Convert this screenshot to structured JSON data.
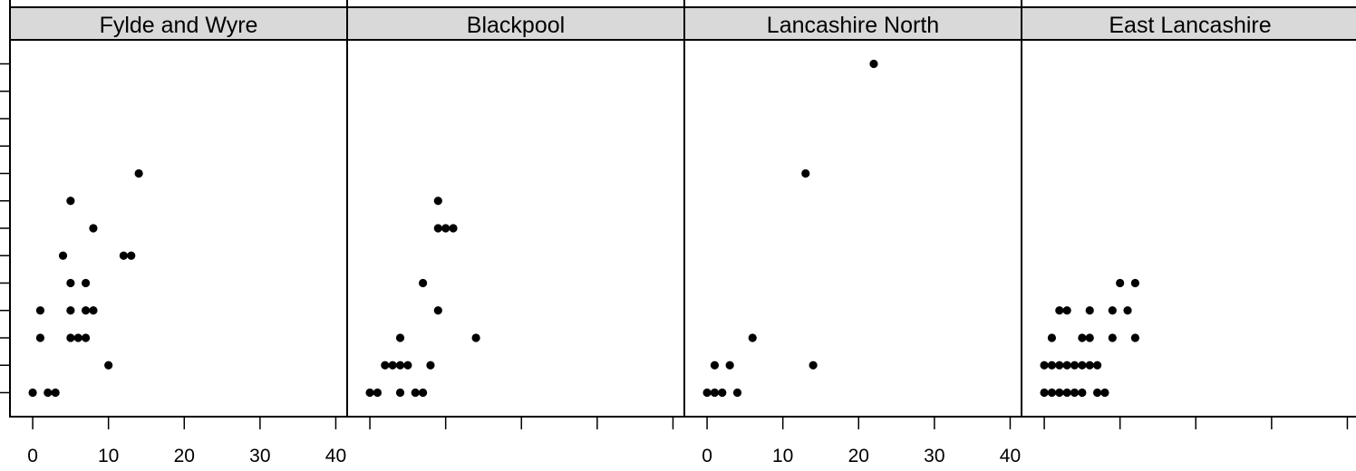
{
  "chart_data": {
    "type": "scatter",
    "layout": "trellis-row",
    "xlim": [
      -3,
      41.5
    ],
    "ylim": [
      -0.5,
      12.8
    ],
    "x_ticks": [
      0,
      10,
      20,
      30,
      40
    ],
    "x_tick_labels": [
      "0",
      "10",
      "20",
      "30",
      "40"
    ],
    "x_tick_labels_on_panels": [
      0,
      2
    ],
    "y_ticks": [
      0,
      1,
      2,
      3,
      4,
      5,
      6,
      7,
      8,
      9,
      10,
      11,
      12
    ],
    "grid": false,
    "colors": {
      "points": "#000000",
      "strip": "#d9d9d9",
      "frame": "#000000"
    },
    "panels": [
      {
        "name": "Fylde and Wyre",
        "points": [
          [
            0,
            0
          ],
          [
            2,
            0
          ],
          [
            3,
            0
          ],
          [
            1,
            2
          ],
          [
            1,
            3
          ],
          [
            4,
            5
          ],
          [
            5,
            2
          ],
          [
            5,
            3
          ],
          [
            5,
            4
          ],
          [
            5,
            7
          ],
          [
            6,
            2
          ],
          [
            7,
            2
          ],
          [
            7,
            3
          ],
          [
            7,
            4
          ],
          [
            8,
            3
          ],
          [
            8,
            6
          ],
          [
            10,
            1
          ],
          [
            12,
            5
          ],
          [
            13,
            5
          ],
          [
            14,
            8
          ]
        ]
      },
      {
        "name": "Blackpool",
        "points": [
          [
            0,
            0
          ],
          [
            1,
            0
          ],
          [
            2,
            1
          ],
          [
            3,
            1
          ],
          [
            4,
            0
          ],
          [
            4,
            1
          ],
          [
            4,
            2
          ],
          [
            5,
            1
          ],
          [
            6,
            0
          ],
          [
            7,
            0
          ],
          [
            7,
            4
          ],
          [
            8,
            1
          ],
          [
            9,
            3
          ],
          [
            9,
            6
          ],
          [
            9,
            7
          ],
          [
            10,
            6
          ],
          [
            11,
            6
          ],
          [
            14,
            2
          ]
        ]
      },
      {
        "name": "Lancashire North",
        "points": [
          [
            0,
            0
          ],
          [
            1,
            0
          ],
          [
            2,
            0
          ],
          [
            1,
            1
          ],
          [
            3,
            1
          ],
          [
            4,
            0
          ],
          [
            6,
            2
          ],
          [
            13,
            8
          ],
          [
            14,
            1
          ],
          [
            22,
            12
          ]
        ]
      },
      {
        "name": "East Lancashire",
        "points": [
          [
            0,
            0
          ],
          [
            1,
            0
          ],
          [
            2,
            0
          ],
          [
            3,
            0
          ],
          [
            4,
            0
          ],
          [
            5,
            0
          ],
          [
            7,
            0
          ],
          [
            8,
            0
          ],
          [
            0,
            1
          ],
          [
            1,
            1
          ],
          [
            2,
            1
          ],
          [
            3,
            1
          ],
          [
            4,
            1
          ],
          [
            5,
            1
          ],
          [
            6,
            1
          ],
          [
            7,
            1
          ],
          [
            1,
            2
          ],
          [
            5,
            2
          ],
          [
            6,
            2
          ],
          [
            9,
            2
          ],
          [
            12,
            2
          ],
          [
            2,
            3
          ],
          [
            3,
            3
          ],
          [
            6,
            3
          ],
          [
            9,
            3
          ],
          [
            11,
            3
          ],
          [
            10,
            4
          ],
          [
            12,
            4
          ]
        ]
      }
    ]
  }
}
